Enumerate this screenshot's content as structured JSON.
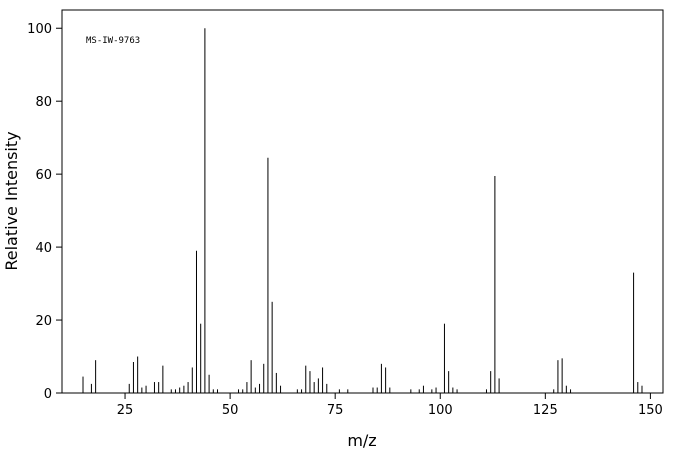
{
  "chart_data": {
    "type": "stem",
    "annotation": "MS-IW-9763",
    "x_label": "m/z",
    "y_label": "Relative Intensity",
    "x": [
      15,
      17,
      18,
      26,
      27,
      28,
      29,
      30,
      32,
      33,
      34,
      36,
      37,
      38,
      39,
      40,
      41,
      42,
      43,
      44,
      45,
      46,
      47,
      52,
      53,
      54,
      55,
      56,
      57,
      58,
      59,
      60,
      61,
      62,
      66,
      67,
      68,
      69,
      70,
      71,
      72,
      73,
      76,
      78,
      84,
      85,
      86,
      87,
      88,
      93,
      95,
      96,
      98,
      99,
      101,
      102,
      103,
      104,
      111,
      112,
      113,
      114,
      127,
      128,
      129,
      130,
      131,
      146,
      147,
      148
    ],
    "values": [
      4.5,
      2.5,
      9,
      2.5,
      8.5,
      10,
      1.5,
      2,
      3,
      3,
      7.5,
      1,
      1,
      1.5,
      2,
      3,
      7,
      39,
      19,
      100,
      5,
      1,
      1,
      1,
      1,
      3,
      9,
      1.5,
      2.5,
      8,
      64.5,
      25,
      5.5,
      2,
      1,
      1,
      7.5,
      6,
      3,
      4,
      7,
      2.5,
      1,
      1,
      1.5,
      1.5,
      8,
      7,
      1.5,
      1,
      1,
      2,
      1,
      1.5,
      19,
      6,
      1.5,
      1,
      1,
      6,
      59.5,
      4,
      1,
      9,
      9.5,
      2,
      1,
      33,
      3,
      2
    ],
    "color": "#000000",
    "xlim": [
      10,
      153
    ],
    "ylim": [
      0,
      105
    ],
    "xticks": [
      25,
      50,
      75,
      100,
      125,
      150
    ],
    "yticks": [
      0,
      20,
      40,
      60,
      80,
      100
    ]
  }
}
